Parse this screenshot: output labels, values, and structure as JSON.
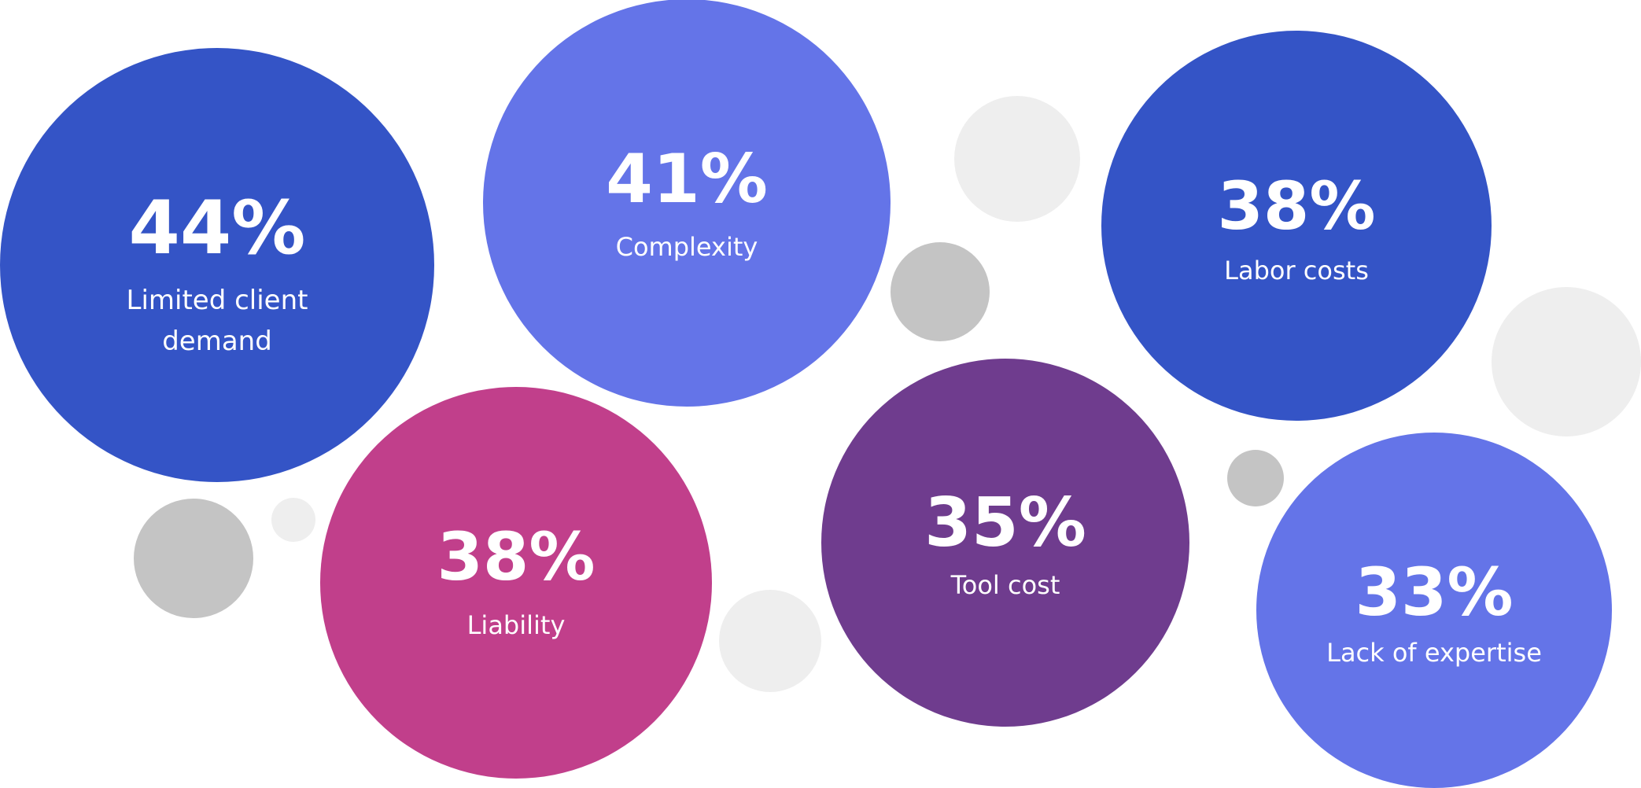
{
  "chart_data": {
    "type": "bubble",
    "title": "",
    "unit": "%",
    "series": [
      {
        "label": "Limited client demand",
        "value": 44,
        "display": "44%",
        "color": "#3454C6"
      },
      {
        "label": "Complexity",
        "value": 41,
        "display": "41%",
        "color": "#6474E8"
      },
      {
        "label": "Labor costs",
        "value": 38,
        "display": "38%",
        "color": "#3454C6"
      },
      {
        "label": "Liability",
        "value": 38,
        "display": "38%",
        "color": "#C13F8B"
      },
      {
        "label": "Tool cost",
        "value": 35,
        "display": "35%",
        "color": "#6F3C8E"
      },
      {
        "label": "Lack of expertise",
        "value": 33,
        "display": "33%",
        "color": "#6474E8"
      }
    ],
    "decor_colors": {
      "light": "#EEEEEE",
      "dark": "#C4C4C4"
    }
  }
}
